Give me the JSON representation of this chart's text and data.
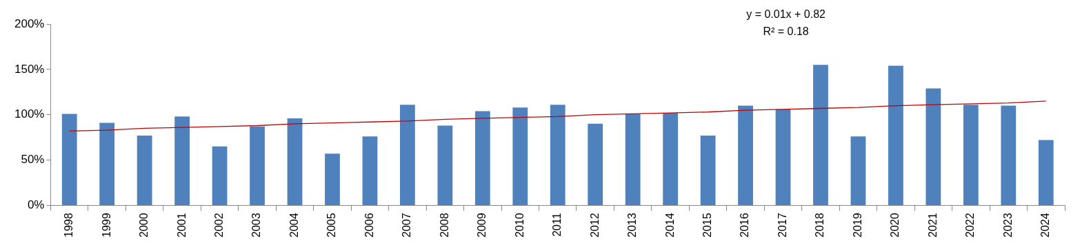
{
  "chart_data": {
    "type": "bar",
    "categories": [
      "1998",
      "1999",
      "2000",
      "2001",
      "2002",
      "2003",
      "2004",
      "2005",
      "2006",
      "2007",
      "2008",
      "2009",
      "2010",
      "2011",
      "2012",
      "2013",
      "2014",
      "2015",
      "2016",
      "2017",
      "2018",
      "2019",
      "2020",
      "2021",
      "2022",
      "2023",
      "2024"
    ],
    "series": [
      {
        "color": "#4f81bd",
        "values": [
          101,
          91,
          77,
          98,
          65,
          87,
          96,
          57,
          76,
          111,
          88,
          104,
          108,
          111,
          90,
          101,
          102,
          77,
          110,
          106,
          155,
          76,
          154,
          129,
          111,
          110,
          72
        ]
      },
      {
        "type": "line",
        "color": "#c00000",
        "values": [
          82,
          83,
          85,
          86,
          87,
          88,
          90,
          91,
          92,
          93,
          95,
          96,
          97,
          98,
          100,
          101,
          102,
          103,
          105,
          106,
          107,
          108,
          110,
          111,
          112,
          113,
          115
        ]
      }
    ],
    "ylim": [
      0,
      200
    ],
    "yticks": [
      {
        "value": 0,
        "label": "0%"
      },
      {
        "value": 50,
        "label": "50%"
      },
      {
        "value": 100,
        "label": "100%"
      },
      {
        "value": 150,
        "label": "150%"
      },
      {
        "value": 200,
        "label": "200%"
      }
    ],
    "grid": false,
    "legend": false,
    "marker": "none",
    "line_style": "solid",
    "annotations": [
      "y = 0.01x + 0.82",
      "R² = 0.18"
    ]
  }
}
